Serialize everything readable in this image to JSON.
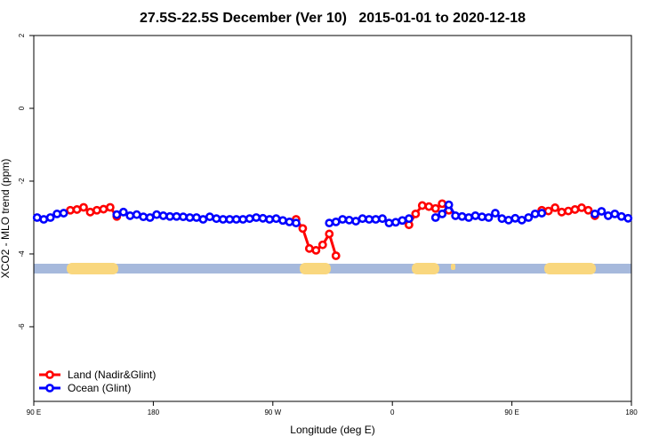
{
  "chart_data": {
    "type": "line",
    "title": "27.5S-22.5S December (Ver 10)   2015-01-01 to 2020-12-18",
    "x_label": "Longitude (deg E)",
    "y_label": "XCO2 - MLO trend (ppm)",
    "xlim": [
      90,
      540
    ],
    "xticks": [
      {
        "value": 90,
        "label": "90 E"
      },
      {
        "value": 180,
        "label": "180"
      },
      {
        "value": 270,
        "label": "90 W"
      },
      {
        "value": 360,
        "label": "0"
      },
      {
        "value": 450,
        "label": "90 E"
      },
      {
        "value": 540,
        "label": "180"
      }
    ],
    "ylim": [
      -8.05,
      2
    ],
    "yticks": [
      2,
      0,
      -2,
      -4,
      -6
    ],
    "legend": "bottom-left",
    "x": [
      92.5,
      97.5,
      102.5,
      107.5,
      112.5,
      117.5,
      122.5,
      127.5,
      132.5,
      137.5,
      142.5,
      147.5,
      152.5,
      157.5,
      162.5,
      167.5,
      172.5,
      177.5,
      182.5,
      187.5,
      192.5,
      197.5,
      202.5,
      207.5,
      212.5,
      217.5,
      222.5,
      227.5,
      232.5,
      237.5,
      242.5,
      247.5,
      252.5,
      257.5,
      262.5,
      267.5,
      272.5,
      277.5,
      282.5,
      287.5,
      292.5,
      297.5,
      302.5,
      307.5,
      312.5,
      317.5,
      322.5,
      327.5,
      332.5,
      337.5,
      342.5,
      347.5,
      352.5,
      357.5,
      362.5,
      367.5,
      372.5,
      377.5,
      382.5,
      387.5,
      392.5,
      397.5,
      402.5,
      407.5,
      412.5,
      417.5,
      422.5,
      427.5,
      432.5,
      437.5,
      442.5,
      447.5,
      452.5,
      457.5,
      462.5,
      467.5,
      472.5,
      477.5,
      482.5,
      487.5,
      492.5,
      497.5,
      502.5,
      507.5,
      512.5,
      517.5,
      522.5,
      527.5,
      532.5,
      537.5
    ],
    "series": [
      {
        "name": "Land (Nadir&Glint)",
        "color": "#ff0000",
        "values": [
          null,
          null,
          null,
          null,
          null,
          -2.8,
          -2.78,
          -2.72,
          -2.85,
          -2.8,
          -2.77,
          -2.72,
          -2.97,
          null,
          null,
          null,
          null,
          null,
          null,
          null,
          null,
          null,
          null,
          null,
          null,
          null,
          null,
          null,
          null,
          null,
          null,
          null,
          null,
          null,
          null,
          null,
          null,
          null,
          null,
          -3.05,
          -3.3,
          -3.85,
          -3.9,
          -3.75,
          -3.45,
          -4.05,
          null,
          null,
          null,
          null,
          null,
          null,
          null,
          null,
          null,
          null,
          -3.2,
          -2.9,
          -2.67,
          -2.7,
          -2.75,
          -2.62,
          -2.8,
          null,
          null,
          null,
          null,
          null,
          null,
          null,
          null,
          null,
          null,
          null,
          null,
          null,
          -2.8,
          -2.82,
          -2.73,
          -2.85,
          -2.82,
          -2.78,
          -2.73,
          -2.8,
          -2.95,
          null,
          null,
          null,
          null,
          null
        ]
      },
      {
        "name": "Ocean (Glint)",
        "color": "#0000ff",
        "values": [
          -3.0,
          -3.05,
          -3.0,
          -2.9,
          -2.88,
          null,
          null,
          null,
          null,
          null,
          null,
          null,
          -2.92,
          -2.85,
          -2.95,
          -2.92,
          -2.98,
          -3.0,
          -2.92,
          -2.95,
          -2.97,
          -2.97,
          -2.98,
          -3.0,
          -3.0,
          -3.05,
          -2.98,
          -3.03,
          -3.05,
          -3.05,
          -3.05,
          -3.05,
          -3.03,
          -3.0,
          -3.02,
          -3.05,
          -3.03,
          -3.08,
          -3.12,
          -3.15,
          null,
          null,
          null,
          null,
          -3.15,
          -3.12,
          -3.05,
          -3.07,
          -3.1,
          -3.03,
          -3.05,
          -3.05,
          -3.03,
          -3.15,
          -3.13,
          -3.08,
          -3.03,
          null,
          null,
          null,
          -3.0,
          -2.9,
          -2.65,
          -2.95,
          -2.97,
          -3.0,
          -2.95,
          -2.98,
          -3.0,
          -2.88,
          -3.03,
          -3.07,
          -3.02,
          -3.07,
          -3.0,
          -2.9,
          -2.88,
          null,
          null,
          null,
          null,
          null,
          null,
          null,
          -2.9,
          -2.83,
          -2.95,
          -2.9,
          -2.97,
          -3.02
        ]
      }
    ]
  }
}
